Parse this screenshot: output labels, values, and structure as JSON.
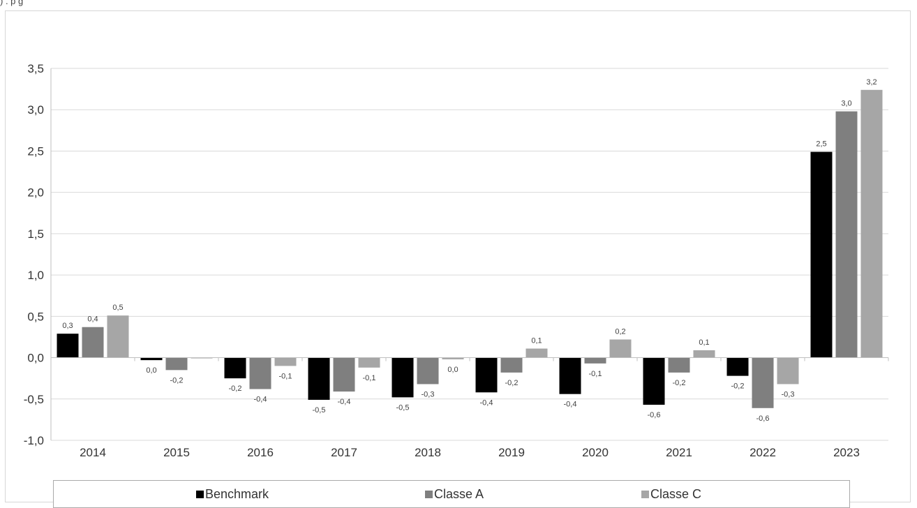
{
  "chart_data": {
    "type": "bar",
    "categories": [
      "2014",
      "2015",
      "2016",
      "2017",
      "2018",
      "2019",
      "2020",
      "2021",
      "2022",
      "2023"
    ],
    "series": [
      {
        "name": "Benchmark",
        "color": "#000000",
        "values": [
          0.29,
          -0.03,
          -0.25,
          -0.51,
          -0.48,
          -0.42,
          -0.44,
          -0.57,
          -0.22,
          2.49
        ],
        "labels": [
          "0,3",
          "0,0",
          "-0,2",
          "-0,5",
          "-0,5",
          "-0,4",
          "-0,4",
          "-0,6",
          "-0,2",
          "2,5"
        ]
      },
      {
        "name": "Classe A",
        "color": "#7f7f7f",
        "values": [
          0.37,
          -0.15,
          -0.38,
          -0.41,
          -0.32,
          -0.18,
          -0.07,
          -0.18,
          -0.61,
          2.98
        ],
        "labels": [
          "0,4",
          "-0,2",
          "-0,4",
          "-0,4",
          "-0,3",
          "-0,2",
          "-0,1",
          "-0,2",
          "-0,6",
          "3,0"
        ]
      },
      {
        "name": "Classe C",
        "color": "#a6a6a6",
        "values": [
          0.51,
          0.0,
          -0.1,
          -0.12,
          -0.02,
          0.11,
          0.22,
          0.09,
          -0.32,
          3.24
        ],
        "labels": [
          "0,5",
          "",
          "-0,1",
          "-0,1",
          "0,0",
          "0,1",
          "0,2",
          "0,1",
          "-0,3",
          "3,2"
        ]
      }
    ],
    "yticks": [
      "-1,0",
      "-0,5",
      "0,0",
      "0,5",
      "1,0",
      "1,5",
      "2,0",
      "2,5",
      "3,0",
      "3,5"
    ],
    "ytick_values": [
      -1.0,
      -0.5,
      0.0,
      0.5,
      1.0,
      1.5,
      2.0,
      2.5,
      3.0,
      3.5
    ],
    "ylim": [
      -1.0,
      3.5
    ],
    "grid": true,
    "legend_position": "bottom",
    "title": "",
    "xlabel": "",
    "ylabel": ""
  },
  "top_note": ") . p     g"
}
